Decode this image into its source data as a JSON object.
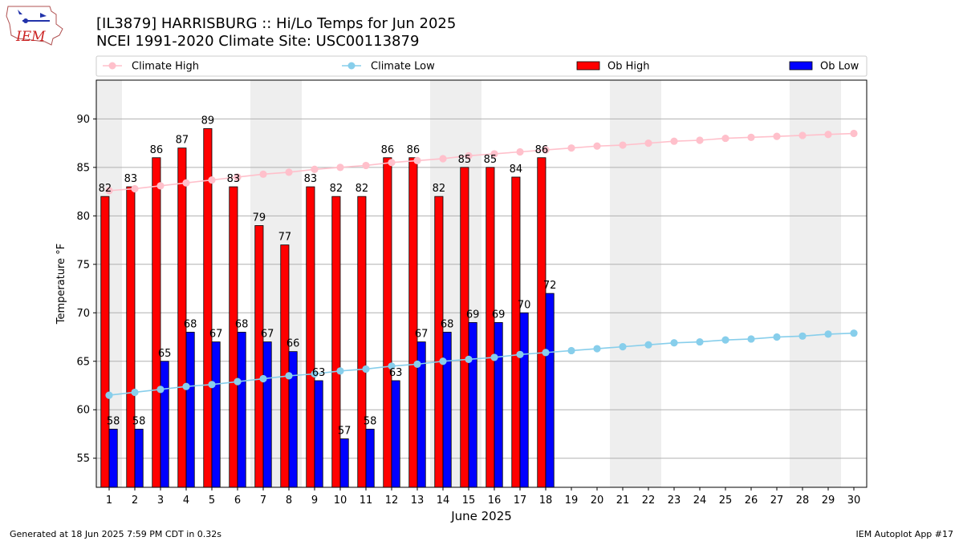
{
  "header": {
    "title_line1": "[IL3879] HARRISBURG :: Hi/Lo Temps for Jun 2025",
    "title_line2": "NCEI 1991-2020 Climate Site: USC00113879",
    "logo_text": "IEM"
  },
  "footer": {
    "generated": "Generated at 18 Jun 2025 7:59 PM CDT in 0.32s",
    "app": "IEM Autoplot App #17"
  },
  "colors": {
    "climate_high": "#ffc0cb",
    "climate_low": "#87ceeb",
    "ob_high": "#ff0000",
    "ob_low": "#0000ff",
    "weekend_shade": "#eeeeee",
    "grid": "#b0b0b0"
  },
  "chart_data": {
    "type": "bar",
    "title": "[IL3879] HARRISBURG :: Hi/Lo Temps for Jun 2025",
    "subtitle": "NCEI 1991-2020 Climate Site: USC00113879",
    "xlabel": "June 2025",
    "ylabel": "Temperature °F",
    "xlim": [
      0.5,
      30.5
    ],
    "ylim": [
      52,
      94
    ],
    "yticks": [
      55,
      60,
      65,
      70,
      75,
      80,
      85,
      90
    ],
    "xticks": [
      1,
      2,
      3,
      4,
      5,
      6,
      7,
      8,
      9,
      10,
      11,
      12,
      13,
      14,
      15,
      16,
      17,
      18,
      19,
      20,
      21,
      22,
      23,
      24,
      25,
      26,
      27,
      28,
      29,
      30
    ],
    "grid": "horizontal",
    "legend_position": "top",
    "weekend_shading": [
      [
        0.5,
        1.5
      ],
      [
        6.5,
        8.5
      ],
      [
        13.5,
        15.5
      ],
      [
        20.5,
        22.5
      ],
      [
        27.5,
        29.5
      ]
    ],
    "legend": [
      {
        "name": "Climate High",
        "kind": "line",
        "color_key": "climate_high"
      },
      {
        "name": "Climate Low",
        "kind": "line",
        "color_key": "climate_low"
      },
      {
        "name": "Ob High",
        "kind": "bar",
        "color_key": "ob_high"
      },
      {
        "name": "Ob Low",
        "kind": "bar",
        "color_key": "ob_low"
      }
    ],
    "series": [
      {
        "name": "Ob High",
        "type": "bar",
        "days": [
          1,
          2,
          3,
          4,
          5,
          6,
          7,
          8,
          9,
          10,
          11,
          12,
          13,
          14,
          15,
          16,
          17,
          18
        ],
        "values": [
          82,
          83,
          86,
          87,
          89,
          83,
          79,
          77,
          83,
          82,
          82,
          86,
          86,
          82,
          85,
          85,
          84,
          86
        ]
      },
      {
        "name": "Ob Low",
        "type": "bar",
        "days": [
          1,
          2,
          3,
          4,
          5,
          6,
          7,
          8,
          9,
          10,
          11,
          12,
          13,
          14,
          15,
          16,
          17,
          18
        ],
        "values": [
          58,
          58,
          65,
          68,
          67,
          68,
          67,
          66,
          63,
          57,
          58,
          63,
          67,
          68,
          69,
          69,
          70,
          72
        ]
      },
      {
        "name": "Climate High",
        "type": "line",
        "days": [
          1,
          2,
          3,
          4,
          5,
          6,
          7,
          8,
          9,
          10,
          11,
          12,
          13,
          14,
          15,
          16,
          17,
          18,
          19,
          20,
          21,
          22,
          23,
          24,
          25,
          26,
          27,
          28,
          29,
          30
        ],
        "values": [
          82.6,
          82.8,
          83.1,
          83.4,
          83.7,
          84.0,
          84.3,
          84.5,
          84.8,
          85.0,
          85.2,
          85.5,
          85.7,
          85.9,
          86.2,
          86.4,
          86.6,
          86.8,
          87.0,
          87.2,
          87.3,
          87.5,
          87.7,
          87.8,
          88.0,
          88.1,
          88.2,
          88.3,
          88.4,
          88.5
        ]
      },
      {
        "name": "Climate Low",
        "type": "line",
        "days": [
          1,
          2,
          3,
          4,
          5,
          6,
          7,
          8,
          9,
          10,
          11,
          12,
          13,
          14,
          15,
          16,
          17,
          18,
          19,
          20,
          21,
          22,
          23,
          24,
          25,
          26,
          27,
          28,
          29,
          30
        ],
        "values": [
          61.5,
          61.8,
          62.1,
          62.4,
          62.6,
          62.9,
          63.2,
          63.5,
          63.7,
          64.0,
          64.2,
          64.5,
          64.7,
          65.0,
          65.2,
          65.4,
          65.7,
          65.9,
          66.1,
          66.3,
          66.5,
          66.7,
          66.9,
          67.0,
          67.2,
          67.3,
          67.5,
          67.6,
          67.8,
          67.9
        ]
      }
    ]
  }
}
